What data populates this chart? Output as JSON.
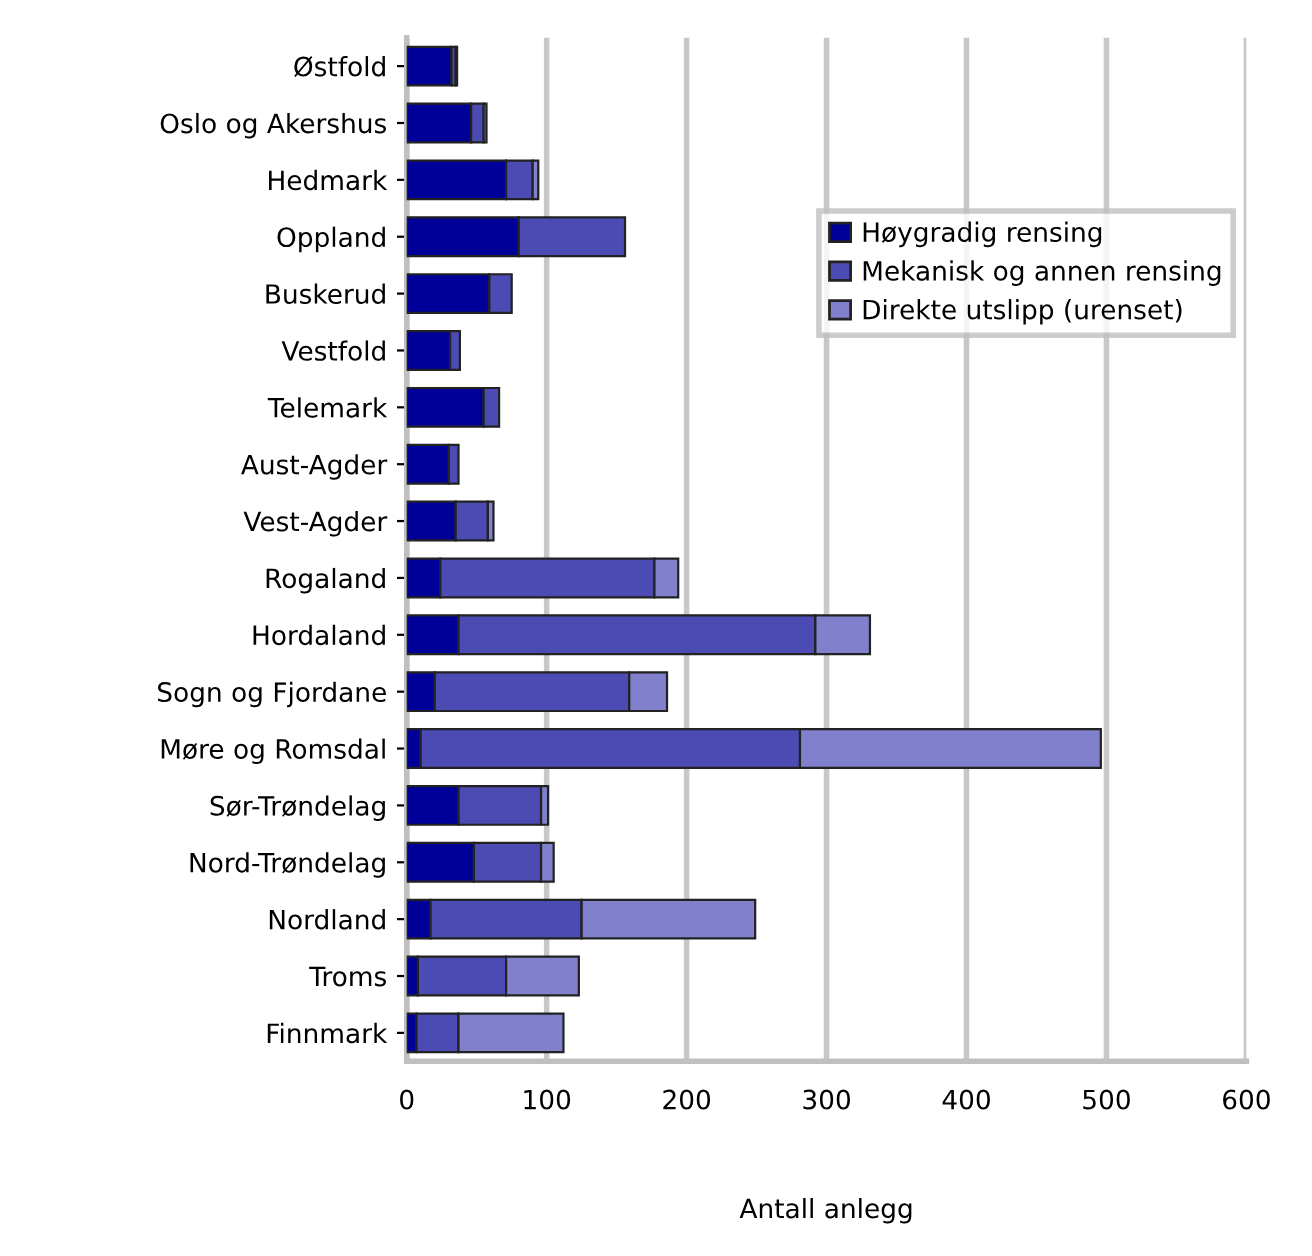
{
  "chart_data": {
    "type": "bar",
    "orientation": "horizontal",
    "stacked": true,
    "categories": [
      "Østfold",
      "Oslo og Akershus",
      "Hedmark",
      "Oppland",
      "Buskerud",
      "Vestfold",
      "Telemark",
      "Aust-Agder",
      "Vest-Agder",
      "Rogaland",
      "Hordaland",
      "Sogn og Fjordane",
      "Møre og Romsdal",
      "Sør-Trøndelag",
      "Nord-Trøndelag",
      "Nordland",
      "Troms",
      "Finnmark"
    ],
    "series": [
      {
        "name": "Høygradig rensing",
        "color": "#000099",
        "values": [
          32,
          46,
          71,
          80,
          59,
          31,
          55,
          30,
          35,
          24,
          37,
          20,
          10,
          37,
          48,
          17,
          8,
          7
        ]
      },
      {
        "name": "Mekanisk og annen rensing",
        "color": "#4b4bb3",
        "values": [
          3,
          9,
          19,
          76,
          16,
          7,
          11,
          7,
          23,
          153,
          255,
          139,
          271,
          59,
          48,
          108,
          63,
          30
        ]
      },
      {
        "name": "Direkte utslipp (urenset)",
        "color": "#8080cc",
        "values": [
          1,
          2,
          4,
          null,
          null,
          null,
          null,
          null,
          4,
          17,
          39,
          27,
          215,
          5,
          9,
          124,
          52,
          75
        ]
      }
    ],
    "xlim": [
      0,
      600
    ],
    "xticks": [
      0,
      100,
      200,
      300,
      400,
      500,
      600
    ],
    "xlabel": "Antall anlegg",
    "grid": "x",
    "legend": "right"
  }
}
